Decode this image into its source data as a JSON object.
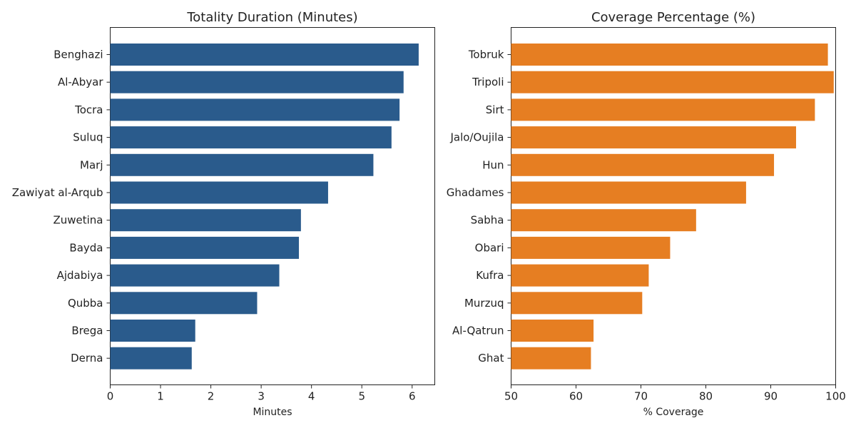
{
  "chart_data": [
    {
      "type": "bar",
      "orientation": "horizontal",
      "title": "Totality Duration (Minutes)",
      "xlabel": "Minutes",
      "ylabel": "",
      "xlim": [
        0,
        6.45
      ],
      "xticks": [
        0,
        1,
        2,
        3,
        4,
        5,
        6
      ],
      "color": "#2a5b8c",
      "grid": false,
      "categories": [
        "Benghazi",
        "Al-Abyar",
        "Tocra",
        "Suluq",
        "Marj",
        "Zawiyat al-Arqub",
        "Zuwetina",
        "Bayda",
        "Ajdabiya",
        "Qubba",
        "Brega",
        "Derna"
      ],
      "values": [
        6.13,
        5.83,
        5.75,
        5.59,
        5.23,
        4.33,
        3.79,
        3.75,
        3.36,
        2.92,
        1.69,
        1.62
      ]
    },
    {
      "type": "bar",
      "orientation": "horizontal",
      "title": "Coverage Percentage (%)",
      "xlabel": "% Coverage",
      "ylabel": "",
      "xlim": [
        50,
        100
      ],
      "xticks": [
        50,
        60,
        70,
        80,
        90,
        100
      ],
      "color": "#e67e22",
      "grid": false,
      "categories": [
        "Tobruk",
        "Tripoli",
        "Sirt",
        "Jalo/Oujila",
        "Hun",
        "Ghadames",
        "Sabha",
        "Obari",
        "Kufra",
        "Murzuq",
        "Al-Qatrun",
        "Ghat"
      ],
      "values": [
        98.8,
        99.7,
        96.8,
        93.9,
        90.5,
        86.2,
        78.5,
        74.5,
        71.2,
        70.2,
        62.7,
        62.3
      ]
    }
  ]
}
